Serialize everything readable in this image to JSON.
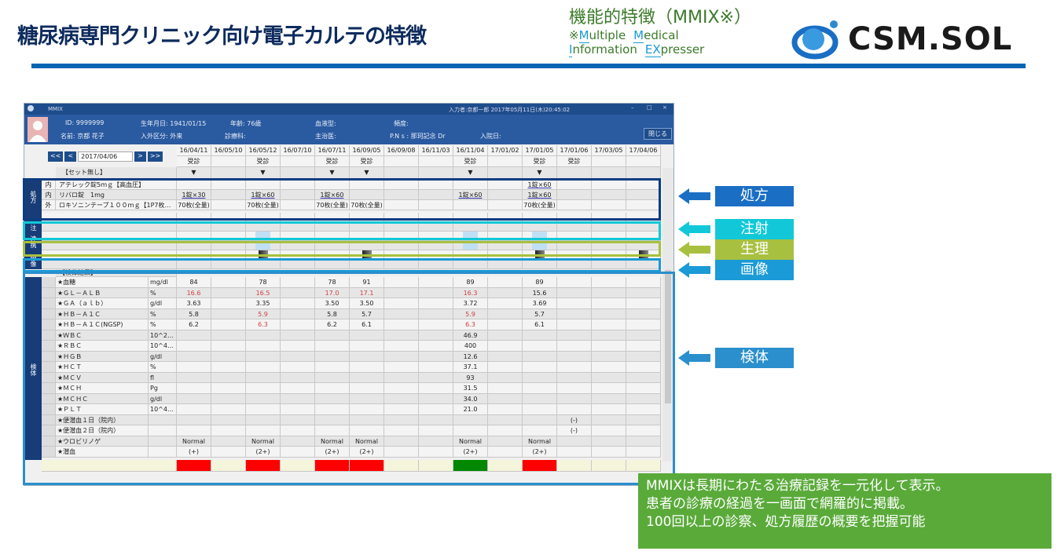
{
  "slide": {
    "title": "糖尿病専門クリニック向け電子カルテの特徴",
    "subtitle": "機能的特徴（MMIX※）",
    "expl_prefix": "※",
    "expl_words": [
      [
        "M",
        "ultiple"
      ],
      [
        "M",
        "edical"
      ],
      [
        "I",
        "nformation"
      ],
      [
        "EX",
        "presser"
      ]
    ],
    "logo": "CSM.SOL"
  },
  "window": {
    "title": "MMIX",
    "status": "入力者:京都一郎 2017年05月11日(木)20:45:02",
    "close_label": "閉じる"
  },
  "patient": {
    "id": "ID:  9999999",
    "name": "名前:  京都  花子",
    "dob": "生年月日:  1941/01/15",
    "inout": "入外区分:  外来",
    "age": "年齢:  76歳",
    "dept": "診療科:",
    "blood": "血液型:",
    "doctor": "主治医:",
    "freq": "頻度:",
    "pns": "P.N s :  那珂記念 Dr",
    "admit": "入院日:"
  },
  "nav": {
    "first": "<<",
    "prev": "<",
    "date": "2017/04/06",
    "next": ">",
    "last": ">>"
  },
  "dates": [
    "16/04/11",
    "16/05/10",
    "16/05/12",
    "16/07/10",
    "16/07/11",
    "16/09/05",
    "16/09/08",
    "16/11/03",
    "16/11/04",
    "17/01/02",
    "17/01/05",
    "17/01/06",
    "17/03/05",
    "17/04/06"
  ],
  "visit_label": "受診",
  "visit_cols": [
    0,
    2,
    4,
    5,
    8,
    10,
    11
  ],
  "marker": "▼",
  "marker_cols": [
    0,
    2,
    4,
    5,
    8,
    10
  ],
  "set_label": "【セット無し】",
  "sections": {
    "rx": "処方",
    "inj": "注射",
    "link": "連携",
    "img": "画像",
    "lab": "検体"
  },
  "rx": [
    {
      "kind": "内",
      "name": "アテレック錠5ｍｇ【高血圧】",
      "cells": {
        "10": "1錠×60"
      }
    },
    {
      "kind": "内",
      "name": "リバロ錠　1mg",
      "cells": {
        "0": "1錠×30",
        "2": "1錠×60",
        "4": "1錠×60",
        "8": "1錠×60",
        "10": "1錠×60"
      }
    },
    {
      "kind": "外",
      "name": "ロキソニンテープ１００ｍｇ【1P7枚】10×…",
      "cells": {
        "0": "70枚(全量)",
        "2": "70枚(全量)",
        "4": "70枚(全量)",
        "5": "70枚(全量)",
        "10": "70枚(全量)"
      }
    }
  ],
  "physio_cols": [
    2,
    8,
    10
  ],
  "image_cols": [
    2,
    5,
    10,
    13
  ],
  "lab_header": "【検体結果】",
  "labs": [
    {
      "name": "★血糖",
      "unit": "mg/dl",
      "v": {
        "0": "84",
        "2": "78",
        "4": "78",
        "5": "91",
        "8": "89",
        "10": "89"
      }
    },
    {
      "name": "★ＧＬ－ＡＬＢ",
      "unit": "%",
      "v": {
        "0": "16.6",
        "2": "16.5",
        "4": "17.0",
        "5": "17.1",
        "8": "16.3",
        "10": "15.6"
      },
      "high": [
        0,
        2,
        4,
        5,
        8
      ]
    },
    {
      "name": "★ＧＡ（ａｌｂ）",
      "unit": "g/dl",
      "v": {
        "0": "3.63",
        "2": "3.35",
        "4": "3.50",
        "5": "3.50",
        "8": "3.72",
        "10": "3.69"
      }
    },
    {
      "name": "★ＨＢ－Ａ１Ｃ",
      "unit": "%",
      "v": {
        "0": "5.8",
        "2": "5.9",
        "4": "5.8",
        "5": "5.7",
        "8": "5.9",
        "10": "5.7"
      },
      "high": [
        2,
        8
      ]
    },
    {
      "name": "★ＨＢ－Ａ１Ｃ(NGSP)",
      "unit": "%",
      "v": {
        "0": "6.2",
        "2": "6.3",
        "4": "6.2",
        "5": "6.1",
        "8": "6.3",
        "10": "6.1"
      },
      "high": [
        2,
        8
      ]
    },
    {
      "name": "★ＷＢＣ",
      "unit": "10^2…",
      "v": {
        "8": "46.9"
      }
    },
    {
      "name": "★ＲＢＣ",
      "unit": "10^4…",
      "v": {
        "8": "400"
      }
    },
    {
      "name": "★ＨＧＢ",
      "unit": "g/dl",
      "v": {
        "8": "12.6"
      }
    },
    {
      "name": "★ＨＣＴ",
      "unit": "%",
      "v": {
        "8": "37.1"
      }
    },
    {
      "name": "★ＭＣＶ",
      "unit": "fl",
      "v": {
        "8": "93"
      }
    },
    {
      "name": "★ＭＣＨ",
      "unit": "Pg",
      "v": {
        "8": "31.5"
      }
    },
    {
      "name": "★ＭＣＨＣ",
      "unit": "g/dl",
      "v": {
        "8": "34.0"
      }
    },
    {
      "name": "★ＰＬＴ",
      "unit": "10^4…",
      "v": {
        "8": "21.0"
      }
    },
    {
      "name": "★便潜血１日（院内）",
      "unit": "",
      "v": {
        "11": "(-)"
      }
    },
    {
      "name": "★便潜血２日（院内）",
      "unit": "",
      "v": {
        "11": "(-)"
      }
    },
    {
      "name": "★ウロビリノゲ",
      "unit": "",
      "v": {
        "0": "Normal",
        "2": "Normal",
        "4": "Normal",
        "5": "Normal",
        "8": "Normal",
        "10": "Normal"
      }
    },
    {
      "name": "★潜血",
      "unit": "",
      "v": {
        "0": "(+)",
        "2": "(2+)",
        "4": "(2+)",
        "5": "(2+)",
        "8": "(2+)",
        "10": "(2+)"
      }
    }
  ],
  "status_bar": {
    "red_cols": [
      0,
      2,
      4,
      5,
      10
    ],
    "green_cols": [
      8
    ]
  },
  "colors": {
    "rx": "#1a6fc4",
    "inj": "#12c8d8",
    "physio": "#a8c040",
    "img": "#1a9ad6",
    "lab": "#2a8fcc",
    "high": "#d04040",
    "note": "#5aaa3a"
  },
  "callouts": [
    {
      "label": "処方",
      "key": "rx"
    },
    {
      "label": "注射",
      "key": "inj"
    },
    {
      "label": "生理",
      "key": "physio"
    },
    {
      "label": "画像",
      "key": "img"
    },
    {
      "label": "検体",
      "key": "lab"
    }
  ],
  "note": [
    "MMIXは長期にわたる治療記録を一元化して表示。",
    "患者の診療の経過を一画面で網羅的に掲載。",
    "100回以上の診察、処方履歴の概要を把握可能"
  ]
}
